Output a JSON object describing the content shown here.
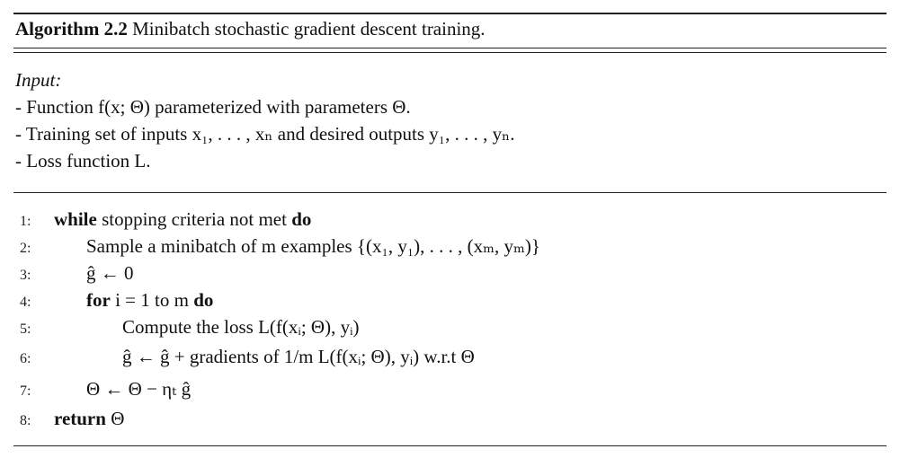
{
  "title": {
    "label": "Algorithm 2.2",
    "text": "Minibatch stochastic gradient descent training."
  },
  "input": {
    "heading": "Input:",
    "items": [
      "- Function f(x; Θ) parameterized with parameters Θ.",
      "- Training set of inputs x₁, . . . , xₙ and desired outputs y₁, . . . , yₙ.",
      "- Loss function L."
    ]
  },
  "algorithm": {
    "line_numbers": [
      "1:",
      "2:",
      "3:",
      "4:",
      "5:",
      "6:",
      "7:",
      "8:"
    ],
    "keywords": {
      "while": "while",
      "do": "do",
      "for": "for",
      "return": "return"
    },
    "lines": [
      "while stopping criteria not met do",
      "Sample a minibatch of m examples {(x₁, y₁), . . . , (xₘ, yₘ)}",
      "ĝ ← 0",
      "for i = 1 to m do",
      "Compute the loss L(f(xᵢ; Θ), yᵢ)",
      "ĝ ← ĝ + gradients of 1/m L(f(xᵢ; Θ), yᵢ) w.r.t Θ",
      "Θ ← Θ − ηₜ ĝ",
      "return Θ"
    ]
  }
}
